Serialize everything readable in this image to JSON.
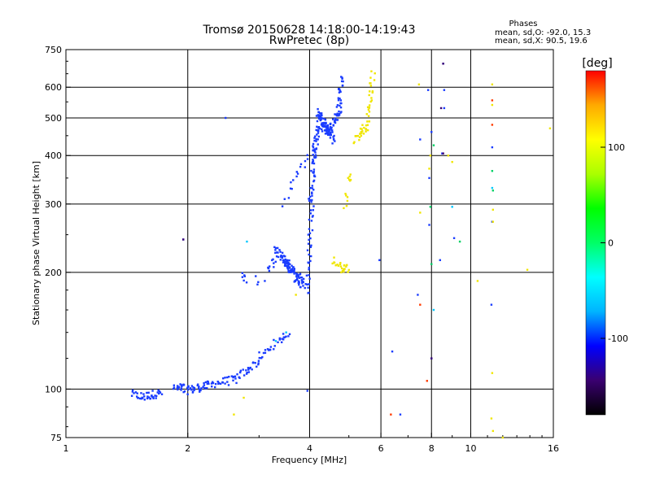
{
  "chart_data": {
    "type": "scatter",
    "title": "Tromsø 20150628 14:18:00-14:19:43",
    "subtitle": "RwPretec (8p)",
    "xlabel": "Frequency [MHz]",
    "ylabel": "Stationary phase Virtual Height [km]",
    "xscale": "log",
    "yscale": "log",
    "xlim": [
      1,
      16
    ],
    "ylim": [
      75,
      750
    ],
    "x_ticks": [
      {
        "value": 1,
        "label": "1"
      },
      {
        "value": 2,
        "label": "2"
      },
      {
        "value": 4,
        "label": "4"
      },
      {
        "value": 6,
        "label": "6"
      },
      {
        "value": 8,
        "label": "8"
      },
      {
        "value": 10,
        "label": "10"
      },
      {
        "value": 16,
        "label": "16"
      }
    ],
    "y_ticks": [
      {
        "value": 75,
        "label": "75"
      },
      {
        "value": 100,
        "label": "100"
      },
      {
        "value": 200,
        "label": "200"
      },
      {
        "value": 300,
        "label": "300"
      },
      {
        "value": 400,
        "label": "400"
      },
      {
        "value": 500,
        "label": "500"
      },
      {
        "value": 600,
        "label": "600"
      },
      {
        "value": 750,
        "label": "750"
      }
    ],
    "grid_x": [
      2,
      4,
      6,
      8,
      10
    ],
    "grid_y": [
      100,
      200,
      300,
      400,
      500,
      600
    ],
    "stats": {
      "heading": "Phases",
      "line_o": "mean, sd,O: -92.0, 15.3",
      "line_x": "mean, sd,X:  90.5, 19.6"
    },
    "colorbar": {
      "label": "[deg]",
      "min": -180,
      "max": 180,
      "ticks": [
        {
          "value": 100,
          "label": "100"
        },
        {
          "value": 0,
          "label": "0"
        },
        {
          "value": -100,
          "label": "-100"
        }
      ],
      "colors": [
        "#000000",
        "#3a0070",
        "#0000ff",
        "#00b4ff",
        "#00ffff",
        "#00ff66",
        "#00ff00",
        "#aaff00",
        "#ffff00",
        "#ffaa00",
        "#ff0000"
      ]
    },
    "series": [
      {
        "phase": -92,
        "color": "#1a3cff",
        "segments": [
          {
            "x0": 1.45,
            "x1": 1.52,
            "y0": 97,
            "y1": 96,
            "n": 10
          },
          {
            "x0": 1.52,
            "x1": 1.72,
            "y0": 95,
            "y1": 98,
            "n": 30
          },
          {
            "x0": 1.85,
            "x1": 1.97,
            "y0": 100,
            "y1": 101,
            "n": 16
          },
          {
            "x0": 1.97,
            "x1": 2.25,
            "y0": 99,
            "y1": 102,
            "n": 35
          },
          {
            "x0": 2.25,
            "x1": 2.65,
            "y0": 103,
            "y1": 106,
            "n": 28
          },
          {
            "x0": 2.65,
            "x1": 3.0,
            "y0": 107,
            "y1": 118,
            "n": 24
          },
          {
            "x0": 3.0,
            "x1": 3.55,
            "y0": 120,
            "y1": 140,
            "n": 28
          },
          {
            "x0": 2.7,
            "x1": 2.8,
            "y0": 195,
            "y1": 192,
            "n": 6
          },
          {
            "x0": 2.95,
            "x1": 3.0,
            "y0": 192,
            "y1": 190,
            "n": 3
          },
          {
            "x0": 3.15,
            "x1": 3.3,
            "y0": 205,
            "y1": 215,
            "n": 10
          },
          {
            "x0": 3.3,
            "x1": 3.65,
            "y0": 230,
            "y1": 200,
            "n": 45
          },
          {
            "x0": 3.45,
            "x1": 3.85,
            "y0": 215,
            "y1": 190,
            "n": 40
          },
          {
            "x0": 3.65,
            "x1": 3.95,
            "y0": 195,
            "y1": 180,
            "n": 25
          },
          {
            "x0": 3.95,
            "x1": 4.05,
            "y0": 185,
            "y1": 300,
            "n": 30
          },
          {
            "x0": 4.0,
            "x1": 4.15,
            "y0": 300,
            "y1": 420,
            "n": 35
          },
          {
            "x0": 4.1,
            "x1": 4.25,
            "y0": 400,
            "y1": 510,
            "n": 35
          },
          {
            "x0": 4.2,
            "x1": 4.45,
            "y0": 520,
            "y1": 460,
            "n": 40
          },
          {
            "x0": 4.3,
            "x1": 4.6,
            "y0": 480,
            "y1": 440,
            "n": 35
          },
          {
            "x0": 4.45,
            "x1": 4.75,
            "y0": 460,
            "y1": 520,
            "n": 35
          },
          {
            "x0": 4.72,
            "x1": 4.82,
            "y0": 520,
            "y1": 640,
            "n": 25
          },
          {
            "x0": 3.45,
            "x1": 3.75,
            "y0": 300,
            "y1": 370,
            "n": 10
          },
          {
            "x0": 3.8,
            "x1": 3.95,
            "y0": 370,
            "y1": 400,
            "n": 6
          }
        ],
        "points": [
          [
            2.48,
            500
          ],
          [
            3.1,
            190
          ],
          [
            3.95,
            99
          ],
          [
            6.4,
            125
          ],
          [
            6.7,
            86
          ],
          [
            7.4,
            175
          ],
          [
            7.5,
            440
          ],
          [
            7.85,
            590
          ],
          [
            7.9,
            350
          ],
          [
            7.9,
            265
          ],
          [
            8.0,
            460
          ],
          [
            8.4,
            215
          ],
          [
            8.6,
            590
          ],
          [
            8.6,
            530
          ],
          [
            8.5,
            405
          ],
          [
            8.55,
            690
          ],
          [
            11.3,
            270
          ],
          [
            11.25,
            165
          ],
          [
            11.3,
            420
          ],
          [
            9.1,
            245
          ],
          [
            8.0,
            120
          ],
          [
            5.95,
            215
          ],
          [
            1.95,
            243
          ]
        ]
      },
      {
        "phase": 90,
        "color": "#f0e600",
        "segments": [
          {
            "x0": 4.8,
            "x1": 4.95,
            "y0": 203,
            "y1": 205,
            "n": 12
          },
          {
            "x0": 4.55,
            "x1": 4.85,
            "y0": 215,
            "y1": 205,
            "n": 12
          },
          {
            "x0": 5.2,
            "x1": 5.55,
            "y0": 440,
            "y1": 480,
            "n": 25
          },
          {
            "x0": 5.55,
            "x1": 5.75,
            "y0": 490,
            "y1": 650,
            "n": 25
          },
          {
            "x0": 4.9,
            "x1": 5.0,
            "y0": 300,
            "y1": 320,
            "n": 6
          },
          {
            "x0": 5.0,
            "x1": 5.05,
            "y0": 340,
            "y1": 360,
            "n": 6
          }
        ],
        "points": [
          [
            2.6,
            86
          ],
          [
            2.75,
            95
          ],
          [
            3.7,
            175
          ],
          [
            7.45,
            610
          ],
          [
            7.5,
            285
          ],
          [
            7.9,
            370
          ],
          [
            7.95,
            400
          ],
          [
            8.8,
            400
          ],
          [
            9.0,
            385
          ],
          [
            10.4,
            190
          ],
          [
            11.3,
            610
          ],
          [
            11.3,
            540
          ],
          [
            11.35,
            290
          ],
          [
            11.35,
            270
          ],
          [
            11.3,
            110
          ],
          [
            11.25,
            84
          ],
          [
            11.35,
            78
          ],
          [
            12.0,
            75
          ],
          [
            15.7,
            470
          ],
          [
            13.8,
            203
          ]
        ]
      },
      {
        "phase": 170,
        "color": "#ff3a00",
        "points": [
          [
            7.5,
            165
          ],
          [
            11.3,
            480
          ],
          [
            11.3,
            555
          ],
          [
            6.35,
            86
          ],
          [
            7.8,
            105
          ]
        ]
      },
      {
        "phase": -5,
        "color": "#00d266",
        "points": [
          [
            8.0,
            210
          ],
          [
            9.4,
            240
          ],
          [
            11.3,
            365
          ],
          [
            11.35,
            325
          ],
          [
            7.95,
            295
          ],
          [
            8.1,
            425
          ]
        ]
      },
      {
        "phase": -60,
        "color": "#00c8ff",
        "points": [
          [
            2.8,
            240
          ],
          [
            3.5,
            140
          ],
          [
            3.3,
            133
          ],
          [
            9.0,
            295
          ],
          [
            11.3,
            330
          ],
          [
            8.1,
            160
          ]
        ]
      },
      {
        "phase": -150,
        "color": "#3a0070",
        "points": [
          [
            8.55,
            690
          ],
          [
            8.55,
            405
          ],
          [
            8.0,
            120
          ],
          [
            8.45,
            530
          ],
          [
            1.95,
            243
          ]
        ]
      }
    ]
  }
}
